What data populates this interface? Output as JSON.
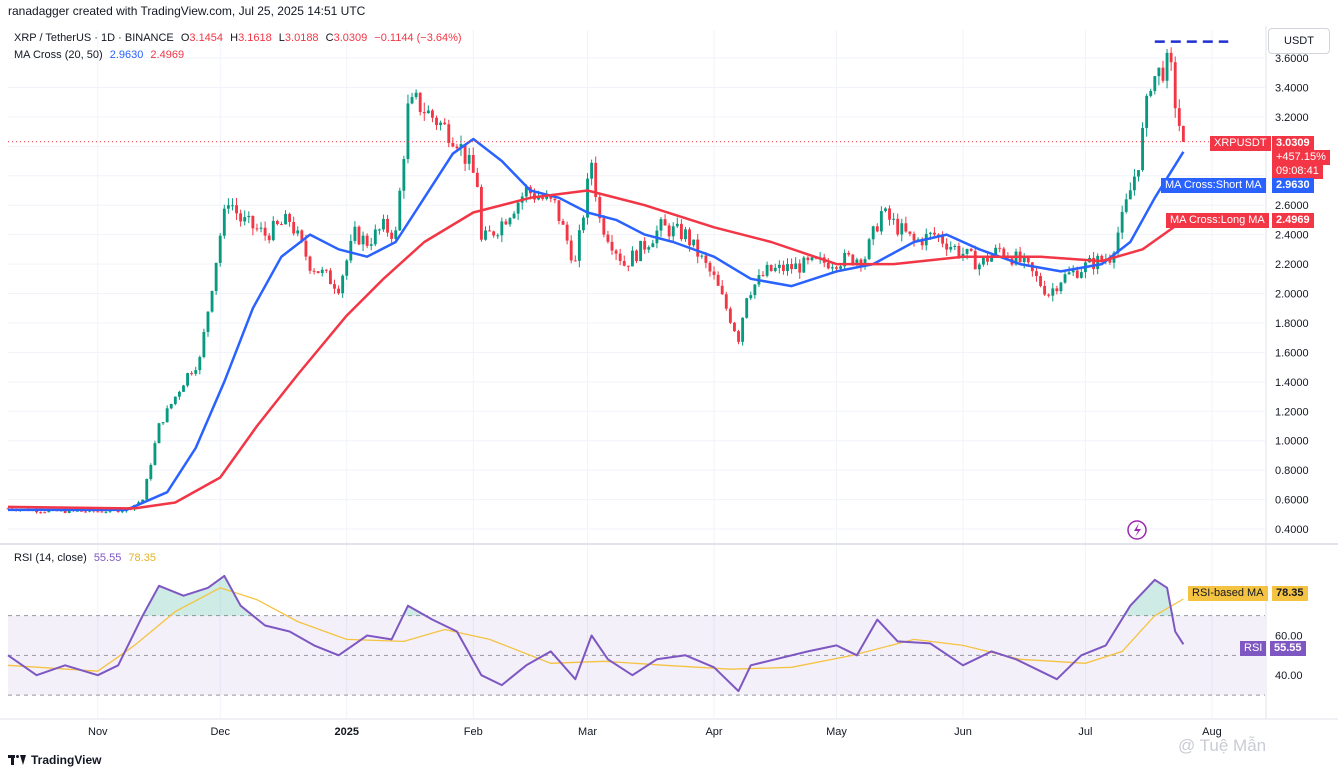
{
  "header": {
    "caption": "ranadagger created with TradingView.com, Jul 25, 2025 14:51 UTC",
    "symbol": "XRP / TetherUS · 1D · BINANCE",
    "o_label": "O",
    "o_val": "3.1454",
    "h_label": "H",
    "h_val": "3.1618",
    "l_label": "L",
    "l_val": "3.0188",
    "c_label": "C",
    "c_val": "3.0309",
    "change": "−0.1144 (−3.64%)",
    "ma_label": "MA Cross (20, 50)",
    "ma_short_val": "2.9630",
    "ma_long_val": "2.4969",
    "rsi_label": "RSI (14, close)",
    "rsi_val": "55.55",
    "rsi_ma_val": "78.35"
  },
  "currency_button": "USDT",
  "tags": {
    "price_name": "XRPUSDT",
    "price_val": "3.0309",
    "price_pct": "+457.15%",
    "price_time": "09:08:41",
    "short_name": "MA Cross:Short MA",
    "short_val": "2.9630",
    "long_name": "MA Cross:Long MA",
    "long_val": "2.4969",
    "rsi_ma_name": "RSI-based MA",
    "rsi_ma_val": "78.35",
    "rsi_name": "RSI",
    "rsi_val": "55.55"
  },
  "footer": {
    "brand": "TradingView"
  },
  "watermark": "@ Tuệ Mẫn",
  "colors": {
    "up": "#089981",
    "down": "#f23645",
    "short_ma": "#2962ff",
    "long_ma": "#f23645",
    "rsi": "#7e57c2",
    "rsi_ma": "#f5c342"
  },
  "chart_data": [
    {
      "type": "candlestick",
      "title": "XRP / TetherUS · 1D · BINANCE",
      "ylim": [
        0.4,
        3.6
      ],
      "y_ticks": [
        "0.4000",
        "0.6000",
        "0.8000",
        "1.0000",
        "1.2000",
        "1.4000",
        "1.6000",
        "1.8000",
        "2.0000",
        "2.2000",
        "2.4000",
        "2.6000",
        "2.8000",
        "3.0000",
        "3.2000",
        "3.4000",
        "3.6000"
      ],
      "x_ticks": [
        "Nov",
        "Dec",
        "2025",
        "Feb",
        "Mar",
        "Apr",
        "May",
        "Jun",
        "Jul",
        "Aug"
      ],
      "x_tick_dates": [
        "2024-11-01",
        "2024-12-01",
        "2025-01-01",
        "2025-02-01",
        "2025-03-01",
        "2025-04-01",
        "2025-05-01",
        "2025-06-01",
        "2025-07-01",
        "2025-08-01"
      ],
      "x_range": [
        "2024-10-10",
        "2025-08-14"
      ],
      "last_price": 3.0309,
      "resistance": 3.65,
      "price_path": [
        [
          "2024-10-10",
          0.54
        ],
        [
          "2024-10-20",
          0.52
        ],
        [
          "2024-11-01",
          0.52
        ],
        [
          "2024-11-08",
          0.53
        ],
        [
          "2024-11-12",
          0.6
        ],
        [
          "2024-11-16",
          1.1
        ],
        [
          "2024-11-23",
          1.45
        ],
        [
          "2024-11-26",
          1.55
        ],
        [
          "2024-12-01",
          2.4
        ],
        [
          "2024-12-03",
          2.65
        ],
        [
          "2024-12-06",
          2.5
        ],
        [
          "2024-12-12",
          2.4
        ],
        [
          "2024-12-18",
          2.5
        ],
        [
          "2024-12-23",
          2.2
        ],
        [
          "2024-12-30",
          2.05
        ],
        [
          "2025-01-03",
          2.4
        ],
        [
          "2025-01-06",
          2.35
        ],
        [
          "2025-01-10",
          2.45
        ],
        [
          "2025-01-13",
          2.4
        ],
        [
          "2025-01-16",
          3.25
        ],
        [
          "2025-01-18",
          3.3
        ],
        [
          "2025-01-24",
          3.15
        ],
        [
          "2025-01-28",
          3.05
        ],
        [
          "2025-02-02",
          2.75
        ],
        [
          "2025-02-03",
          2.35
        ],
        [
          "2025-02-07",
          2.45
        ],
        [
          "2025-02-14",
          2.7
        ],
        [
          "2025-02-21",
          2.6
        ],
        [
          "2025-02-26",
          2.2
        ],
        [
          "2025-03-02",
          2.9
        ],
        [
          "2025-03-04",
          2.5
        ],
        [
          "2025-03-10",
          2.2
        ],
        [
          "2025-03-14",
          2.3
        ],
        [
          "2025-03-19",
          2.45
        ],
        [
          "2025-03-25",
          2.4
        ],
        [
          "2025-04-01",
          2.1
        ],
        [
          "2025-04-07",
          1.7
        ],
        [
          "2025-04-09",
          2.0
        ],
        [
          "2025-04-14",
          2.15
        ],
        [
          "2025-04-25",
          2.2
        ],
        [
          "2025-05-08",
          2.25
        ],
        [
          "2025-05-12",
          2.55
        ],
        [
          "2025-05-20",
          2.35
        ],
        [
          "2025-05-25",
          2.4
        ],
        [
          "2025-06-05",
          2.2
        ],
        [
          "2025-06-10",
          2.3
        ],
        [
          "2025-06-16",
          2.2
        ],
        [
          "2025-06-22",
          2.0
        ],
        [
          "2025-06-25",
          2.1
        ],
        [
          "2025-07-02",
          2.2
        ],
        [
          "2025-07-07",
          2.25
        ],
        [
          "2025-07-10",
          2.5
        ],
        [
          "2025-07-14",
          2.9
        ],
        [
          "2025-07-17",
          3.45
        ],
        [
          "2025-07-19",
          3.5
        ],
        [
          "2025-07-21",
          3.55
        ],
        [
          "2025-07-22",
          3.5
        ],
        [
          "2025-07-23",
          3.3
        ],
        [
          "2025-07-24",
          3.15
        ],
        [
          "2025-07-25",
          3.03
        ]
      ],
      "series": [
        {
          "name": "MA Cross:Short MA",
          "points": [
            [
              "2024-10-10",
              0.53
            ],
            [
              "2024-11-08",
              0.53
            ],
            [
              "2024-11-18",
              0.65
            ],
            [
              "2024-11-25",
              0.95
            ],
            [
              "2024-12-02",
              1.4
            ],
            [
              "2024-12-09",
              1.9
            ],
            [
              "2024-12-16",
              2.25
            ],
            [
              "2024-12-23",
              2.4
            ],
            [
              "2024-12-30",
              2.3
            ],
            [
              "2025-01-06",
              2.25
            ],
            [
              "2025-01-13",
              2.35
            ],
            [
              "2025-01-20",
              2.65
            ],
            [
              "2025-01-27",
              2.95
            ],
            [
              "2025-02-01",
              3.05
            ],
            [
              "2025-02-08",
              2.9
            ],
            [
              "2025-02-15",
              2.7
            ],
            [
              "2025-02-22",
              2.65
            ],
            [
              "2025-03-01",
              2.55
            ],
            [
              "2025-03-08",
              2.5
            ],
            [
              "2025-03-15",
              2.4
            ],
            [
              "2025-03-22",
              2.35
            ],
            [
              "2025-04-01",
              2.25
            ],
            [
              "2025-04-10",
              2.1
            ],
            [
              "2025-04-20",
              2.05
            ],
            [
              "2025-05-01",
              2.15
            ],
            [
              "2025-05-10",
              2.2
            ],
            [
              "2025-05-20",
              2.35
            ],
            [
              "2025-05-28",
              2.4
            ],
            [
              "2025-06-05",
              2.3
            ],
            [
              "2025-06-15",
              2.2
            ],
            [
              "2025-06-25",
              2.15
            ],
            [
              "2025-07-05",
              2.2
            ],
            [
              "2025-07-12",
              2.35
            ],
            [
              "2025-07-18",
              2.65
            ],
            [
              "2025-07-25",
              2.963
            ]
          ]
        },
        {
          "name": "MA Cross:Long MA",
          "points": [
            [
              "2024-10-10",
              0.55
            ],
            [
              "2024-11-10",
              0.54
            ],
            [
              "2024-11-20",
              0.58
            ],
            [
              "2024-12-01",
              0.75
            ],
            [
              "2024-12-10",
              1.1
            ],
            [
              "2024-12-20",
              1.45
            ],
            [
              "2025-01-01",
              1.85
            ],
            [
              "2025-01-10",
              2.1
            ],
            [
              "2025-01-20",
              2.35
            ],
            [
              "2025-02-01",
              2.55
            ],
            [
              "2025-02-15",
              2.65
            ],
            [
              "2025-03-01",
              2.7
            ],
            [
              "2025-03-15",
              2.6
            ],
            [
              "2025-04-01",
              2.45
            ],
            [
              "2025-04-15",
              2.35
            ],
            [
              "2025-05-01",
              2.2
            ],
            [
              "2025-05-15",
              2.2
            ],
            [
              "2025-06-01",
              2.25
            ],
            [
              "2025-06-20",
              2.25
            ],
            [
              "2025-07-05",
              2.22
            ],
            [
              "2025-07-15",
              2.3
            ],
            [
              "2025-07-25",
              2.4969
            ]
          ]
        }
      ]
    },
    {
      "type": "line",
      "title": "RSI (14, close)",
      "ylim": [
        25,
        100
      ],
      "y_ticks": [
        "40.00",
        "60.00",
        "80.00"
      ],
      "overbought": 70,
      "oversold": 30,
      "midline": 50,
      "series": [
        {
          "name": "RSI",
          "points": [
            [
              "2024-10-10",
              50
            ],
            [
              "2024-10-17",
              40
            ],
            [
              "2024-10-24",
              45
            ],
            [
              "2024-11-01",
              40
            ],
            [
              "2024-11-06",
              45
            ],
            [
              "2024-11-12",
              70
            ],
            [
              "2024-11-16",
              85
            ],
            [
              "2024-11-22",
              80
            ],
            [
              "2024-11-28",
              84
            ],
            [
              "2024-12-02",
              90
            ],
            [
              "2024-12-06",
              75
            ],
            [
              "2024-12-12",
              65
            ],
            [
              "2024-12-18",
              62
            ],
            [
              "2024-12-24",
              55
            ],
            [
              "2024-12-30",
              50
            ],
            [
              "2025-01-06",
              60
            ],
            [
              "2025-01-12",
              58
            ],
            [
              "2025-01-16",
              75
            ],
            [
              "2025-01-22",
              68
            ],
            [
              "2025-01-28",
              62
            ],
            [
              "2025-02-03",
              40
            ],
            [
              "2025-02-08",
              35
            ],
            [
              "2025-02-14",
              45
            ],
            [
              "2025-02-20",
              52
            ],
            [
              "2025-02-26",
              38
            ],
            [
              "2025-03-02",
              60
            ],
            [
              "2025-03-06",
              48
            ],
            [
              "2025-03-12",
              40
            ],
            [
              "2025-03-18",
              48
            ],
            [
              "2025-03-25",
              50
            ],
            [
              "2025-04-01",
              44
            ],
            [
              "2025-04-07",
              32
            ],
            [
              "2025-04-10",
              45
            ],
            [
              "2025-04-16",
              48
            ],
            [
              "2025-04-24",
              52
            ],
            [
              "2025-05-01",
              55
            ],
            [
              "2025-05-06",
              50
            ],
            [
              "2025-05-11",
              68
            ],
            [
              "2025-05-16",
              57
            ],
            [
              "2025-05-24",
              56
            ],
            [
              "2025-06-01",
              45
            ],
            [
              "2025-06-08",
              52
            ],
            [
              "2025-06-14",
              48
            ],
            [
              "2025-06-20",
              42
            ],
            [
              "2025-06-24",
              38
            ],
            [
              "2025-06-30",
              50
            ],
            [
              "2025-07-06",
              55
            ],
            [
              "2025-07-12",
              75
            ],
            [
              "2025-07-18",
              88
            ],
            [
              "2025-07-21",
              84
            ],
            [
              "2025-07-23",
              62
            ],
            [
              "2025-07-25",
              55.55
            ]
          ]
        },
        {
          "name": "RSI-based MA",
          "points": [
            [
              "2024-10-10",
              45
            ],
            [
              "2024-11-01",
              42
            ],
            [
              "2024-11-10",
              55
            ],
            [
              "2024-11-20",
              72
            ],
            [
              "2024-12-01",
              84
            ],
            [
              "2024-12-10",
              78
            ],
            [
              "2024-12-20",
              67
            ],
            [
              "2025-01-01",
              58
            ],
            [
              "2025-01-15",
              57
            ],
            [
              "2025-01-25",
              63
            ],
            [
              "2025-02-05",
              58
            ],
            [
              "2025-02-20",
              46
            ],
            [
              "2025-03-05",
              47
            ],
            [
              "2025-03-20",
              45
            ],
            [
              "2025-04-05",
              43
            ],
            [
              "2025-04-20",
              44
            ],
            [
              "2025-05-05",
              50
            ],
            [
              "2025-05-20",
              58
            ],
            [
              "2025-06-01",
              55
            ],
            [
              "2025-06-15",
              48
            ],
            [
              "2025-07-01",
              46
            ],
            [
              "2025-07-10",
              52
            ],
            [
              "2025-07-18",
              70
            ],
            [
              "2025-07-25",
              78.35
            ]
          ]
        }
      ]
    }
  ]
}
